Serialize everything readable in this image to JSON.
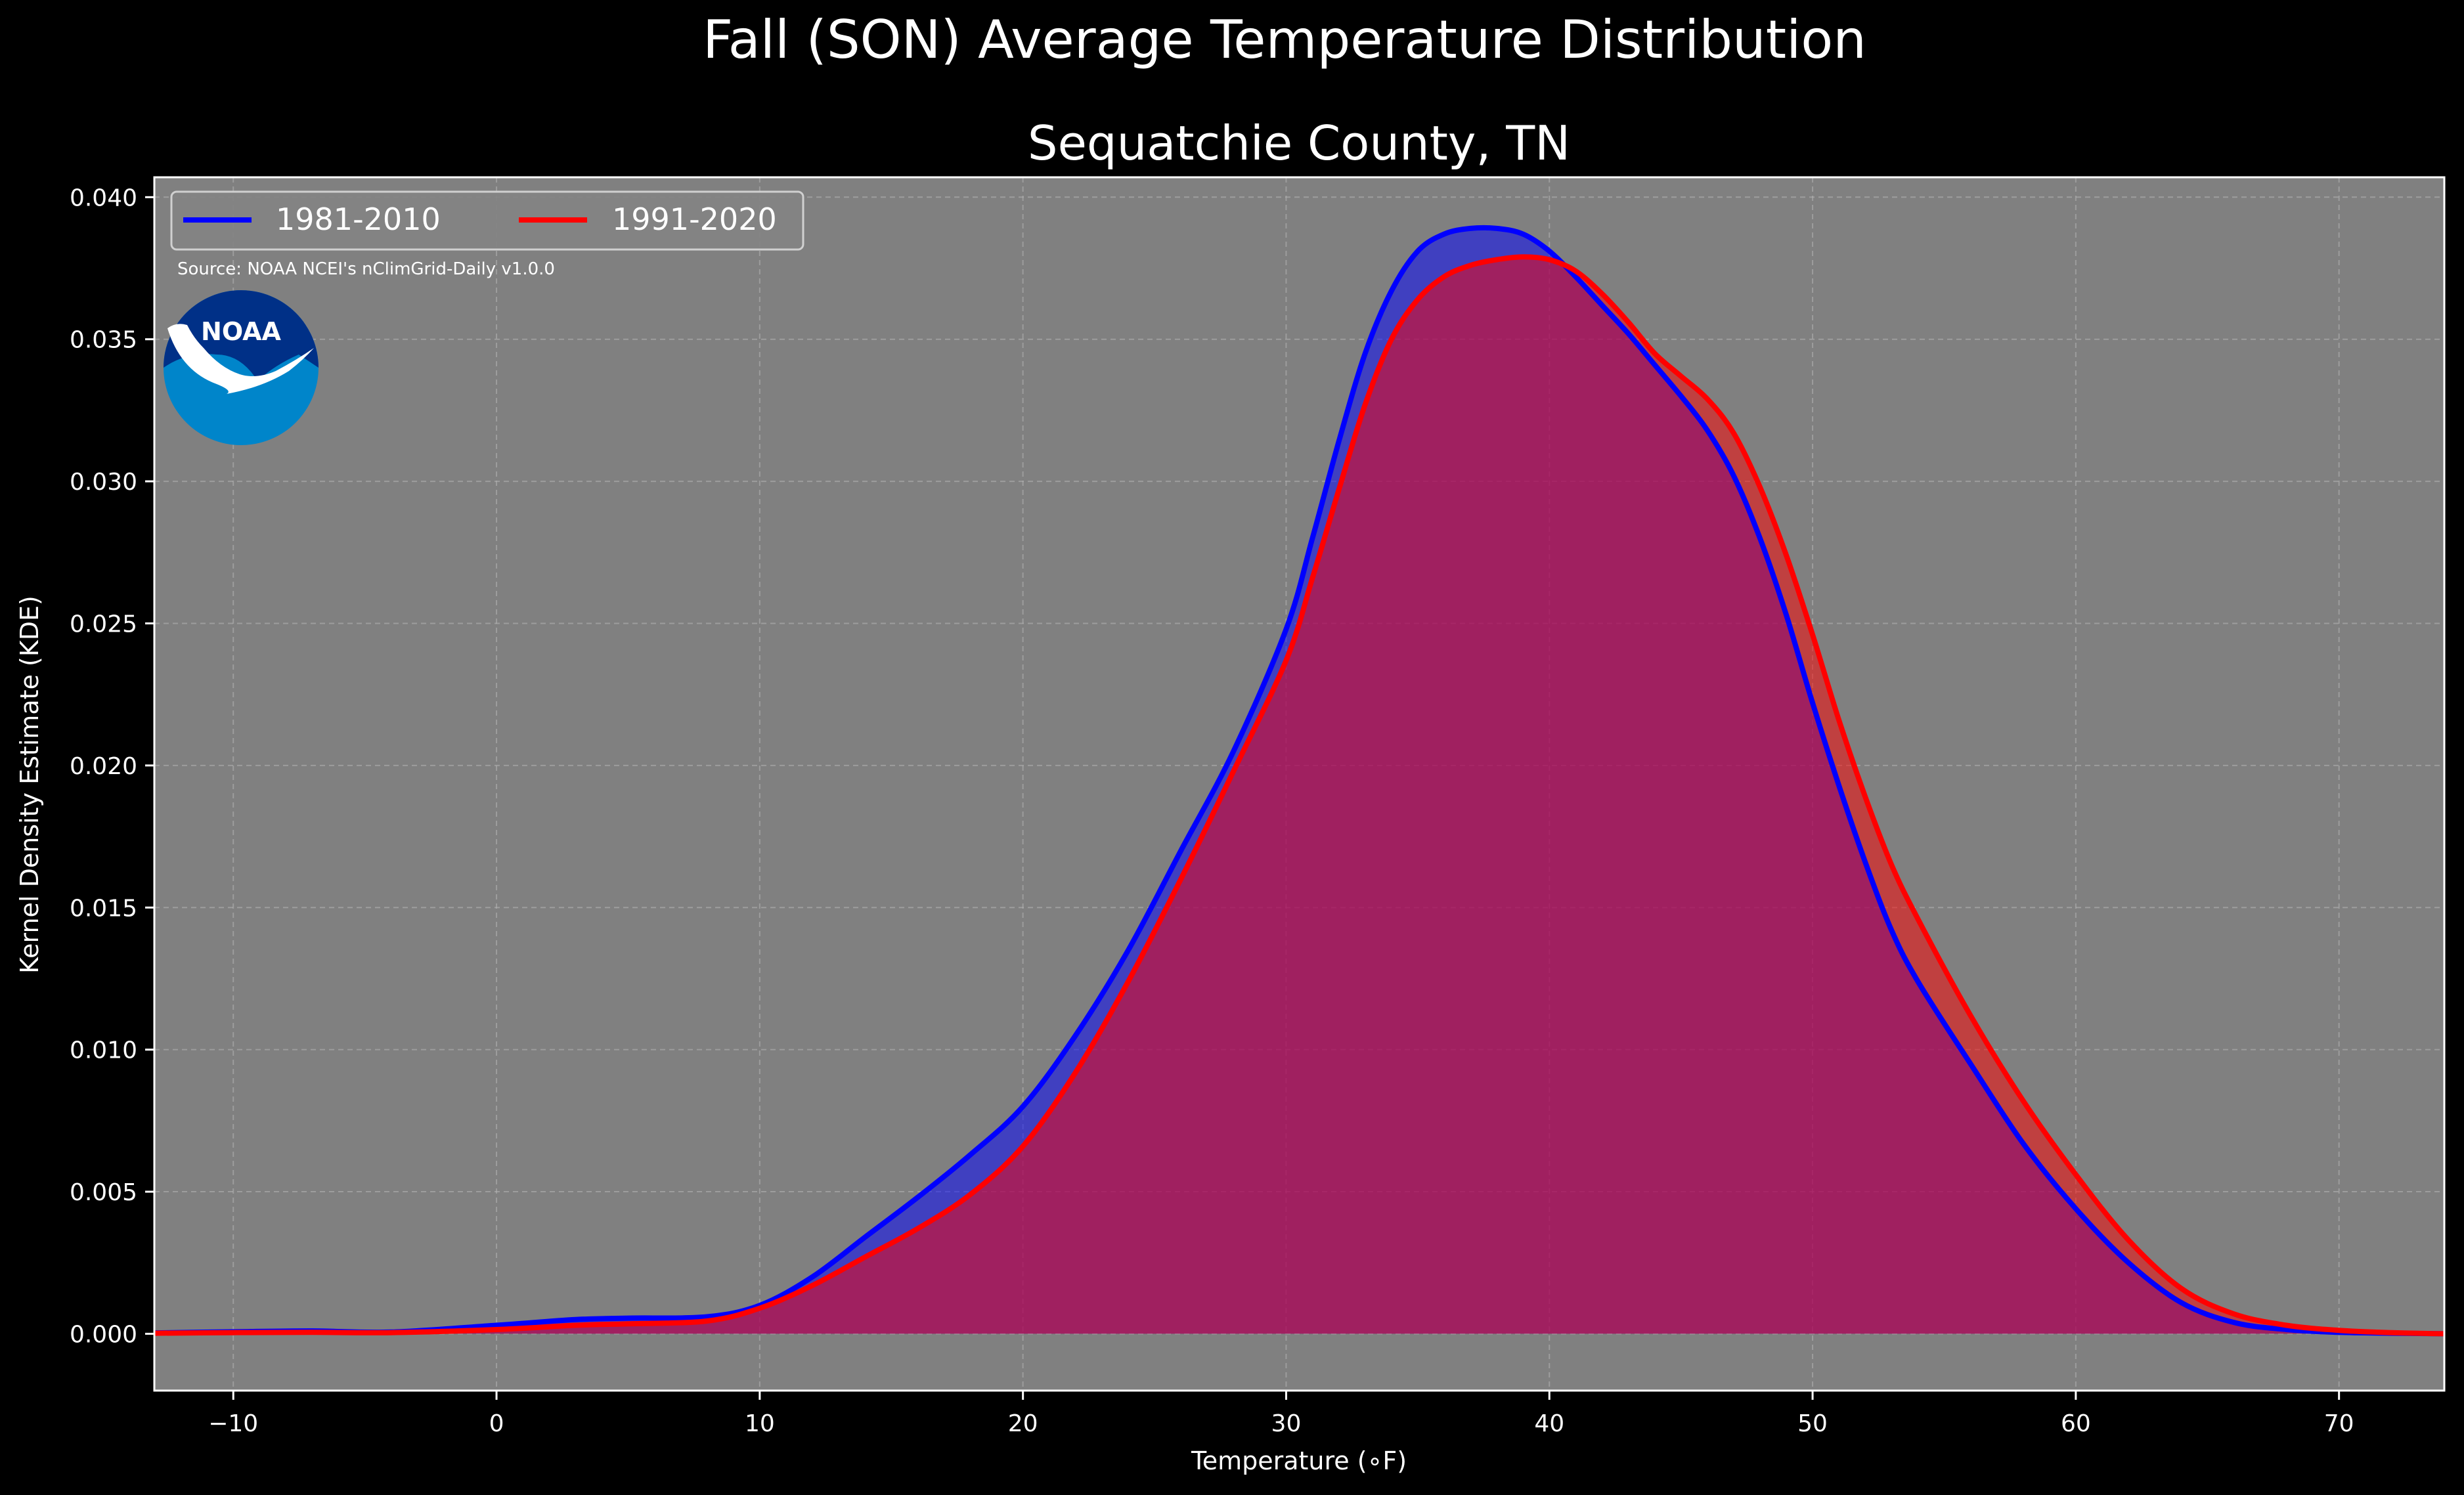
{
  "chart_data": {
    "type": "area",
    "suptitle": "Fall (SON) Average Temperature Distribution",
    "title": "Sequatchie County, TN",
    "xlabel": "Temperature (∘F)",
    "ylabel": "Kernel Density Estimate (KDE)",
    "xlim": [
      -13,
      74
    ],
    "ylim": [
      -0.002,
      0.0407
    ],
    "x_ticks": [
      -10,
      0,
      10,
      20,
      30,
      40,
      50,
      60,
      70
    ],
    "x_tick_labels": [
      "−10",
      "0",
      "10",
      "20",
      "30",
      "40",
      "50",
      "60",
      "70"
    ],
    "y_ticks": [
      0.0,
      0.005,
      0.01,
      0.015,
      0.02,
      0.025,
      0.03,
      0.035,
      0.04
    ],
    "y_tick_labels": [
      "0.000",
      "0.005",
      "0.010",
      "0.015",
      "0.020",
      "0.025",
      "0.030",
      "0.035",
      "0.040"
    ],
    "grid": true,
    "legend": {
      "placement": "top-left",
      "columns": 2
    },
    "source_note": "Source: NOAA NCEI's nClimGrid-Daily v1.0.0",
    "logo_text": "NOAA",
    "colors": {
      "figure_bg": "#000000",
      "axes_bg": "#808080",
      "grid": "#b4b4b4",
      "text": "#ffffff"
    },
    "series": [
      {
        "name": "1981-2010",
        "color": "#0000ff",
        "fill": "#0000ff",
        "fill_opacity": 0.5,
        "x": [
          -13,
          -10,
          -7,
          -4,
          0,
          3,
          5,
          8,
          10,
          12,
          14,
          16,
          18,
          20,
          22,
          24,
          26,
          28,
          30,
          31,
          32,
          33,
          34,
          35,
          36,
          37,
          38,
          39,
          40,
          41,
          42,
          43,
          44,
          45,
          46,
          47,
          48,
          49,
          50,
          51,
          52,
          53,
          54,
          56,
          58,
          60,
          62,
          64,
          66,
          68,
          70,
          72,
          74
        ],
        "y": [
          3e-05,
          7e-05,
          0.0001,
          6e-05,
          0.0003,
          0.0005,
          0.00055,
          0.0006,
          0.001,
          0.002,
          0.0034,
          0.0048,
          0.0063,
          0.008,
          0.0105,
          0.0135,
          0.017,
          0.0205,
          0.0248,
          0.028,
          0.0314,
          0.0345,
          0.0367,
          0.0381,
          0.0387,
          0.0389,
          0.0389,
          0.0387,
          0.0381,
          0.0372,
          0.0362,
          0.0352,
          0.0341,
          0.033,
          0.0318,
          0.0302,
          0.028,
          0.0253,
          0.0222,
          0.0193,
          0.0166,
          0.0142,
          0.0124,
          0.0095,
          0.0067,
          0.0044,
          0.0025,
          0.0011,
          0.0004,
          0.00015,
          5e-05,
          2e-05,
          0.0
        ]
      },
      {
        "name": "1991-2020",
        "color": "#ff0000",
        "fill": "#ff0000",
        "fill_opacity": 0.5,
        "x": [
          -13,
          -10,
          -7,
          -4,
          0,
          3,
          5,
          8,
          10,
          12,
          14,
          16,
          18,
          20,
          22,
          24,
          26,
          28,
          30,
          31,
          32,
          33,
          34,
          35,
          36,
          37,
          38,
          39,
          40,
          41,
          42,
          43,
          44,
          45,
          46,
          47,
          48,
          49,
          50,
          51,
          52,
          53,
          54,
          56,
          58,
          60,
          62,
          64,
          66,
          68,
          70,
          72,
          74
        ],
        "y": [
          2e-05,
          4e-05,
          5e-05,
          4e-05,
          0.00015,
          0.0003,
          0.00035,
          0.00045,
          0.0009,
          0.0017,
          0.0027,
          0.0037,
          0.0049,
          0.0066,
          0.0092,
          0.0124,
          0.016,
          0.0198,
          0.0237,
          0.0266,
          0.0297,
          0.0327,
          0.035,
          0.0364,
          0.0372,
          0.0376,
          0.0378,
          0.0379,
          0.0378,
          0.0374,
          0.0366,
          0.0356,
          0.0345,
          0.0337,
          0.0329,
          0.0317,
          0.0298,
          0.0274,
          0.0246,
          0.0216,
          0.0189,
          0.0165,
          0.0146,
          0.0112,
          0.0082,
          0.0056,
          0.0033,
          0.0016,
          0.0007,
          0.0003,
          0.00012,
          4e-05,
          0.0
        ]
      }
    ]
  }
}
